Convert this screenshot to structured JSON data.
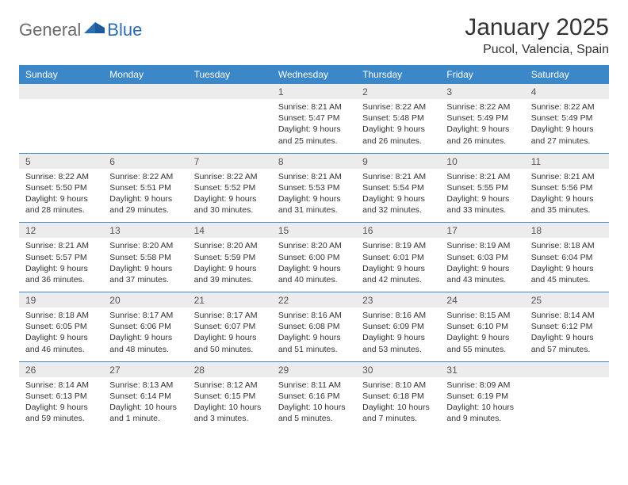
{
  "logo": {
    "text1": "General",
    "text2": "Blue"
  },
  "title": "January 2025",
  "location": "Pucol, Valencia, Spain",
  "colors": {
    "header_bg": "#3b87c8",
    "header_text": "#ffffff",
    "daynum_bg": "#ececec",
    "daynum_text": "#555555",
    "body_text": "#333333",
    "logo_gray": "#6b6b6b",
    "logo_blue": "#2a6db3",
    "row_sep": "#3b87c8"
  },
  "days_of_week": [
    "Sunday",
    "Monday",
    "Tuesday",
    "Wednesday",
    "Thursday",
    "Friday",
    "Saturday"
  ],
  "weeks": [
    [
      null,
      null,
      null,
      {
        "n": "1",
        "sr": "8:21 AM",
        "ss": "5:47 PM",
        "dl": "9 hours and 25 minutes."
      },
      {
        "n": "2",
        "sr": "8:22 AM",
        "ss": "5:48 PM",
        "dl": "9 hours and 26 minutes."
      },
      {
        "n": "3",
        "sr": "8:22 AM",
        "ss": "5:49 PM",
        "dl": "9 hours and 26 minutes."
      },
      {
        "n": "4",
        "sr": "8:22 AM",
        "ss": "5:49 PM",
        "dl": "9 hours and 27 minutes."
      }
    ],
    [
      {
        "n": "5",
        "sr": "8:22 AM",
        "ss": "5:50 PM",
        "dl": "9 hours and 28 minutes."
      },
      {
        "n": "6",
        "sr": "8:22 AM",
        "ss": "5:51 PM",
        "dl": "9 hours and 29 minutes."
      },
      {
        "n": "7",
        "sr": "8:22 AM",
        "ss": "5:52 PM",
        "dl": "9 hours and 30 minutes."
      },
      {
        "n": "8",
        "sr": "8:21 AM",
        "ss": "5:53 PM",
        "dl": "9 hours and 31 minutes."
      },
      {
        "n": "9",
        "sr": "8:21 AM",
        "ss": "5:54 PM",
        "dl": "9 hours and 32 minutes."
      },
      {
        "n": "10",
        "sr": "8:21 AM",
        "ss": "5:55 PM",
        "dl": "9 hours and 33 minutes."
      },
      {
        "n": "11",
        "sr": "8:21 AM",
        "ss": "5:56 PM",
        "dl": "9 hours and 35 minutes."
      }
    ],
    [
      {
        "n": "12",
        "sr": "8:21 AM",
        "ss": "5:57 PM",
        "dl": "9 hours and 36 minutes."
      },
      {
        "n": "13",
        "sr": "8:20 AM",
        "ss": "5:58 PM",
        "dl": "9 hours and 37 minutes."
      },
      {
        "n": "14",
        "sr": "8:20 AM",
        "ss": "5:59 PM",
        "dl": "9 hours and 39 minutes."
      },
      {
        "n": "15",
        "sr": "8:20 AM",
        "ss": "6:00 PM",
        "dl": "9 hours and 40 minutes."
      },
      {
        "n": "16",
        "sr": "8:19 AM",
        "ss": "6:01 PM",
        "dl": "9 hours and 42 minutes."
      },
      {
        "n": "17",
        "sr": "8:19 AM",
        "ss": "6:03 PM",
        "dl": "9 hours and 43 minutes."
      },
      {
        "n": "18",
        "sr": "8:18 AM",
        "ss": "6:04 PM",
        "dl": "9 hours and 45 minutes."
      }
    ],
    [
      {
        "n": "19",
        "sr": "8:18 AM",
        "ss": "6:05 PM",
        "dl": "9 hours and 46 minutes."
      },
      {
        "n": "20",
        "sr": "8:17 AM",
        "ss": "6:06 PM",
        "dl": "9 hours and 48 minutes."
      },
      {
        "n": "21",
        "sr": "8:17 AM",
        "ss": "6:07 PM",
        "dl": "9 hours and 50 minutes."
      },
      {
        "n": "22",
        "sr": "8:16 AM",
        "ss": "6:08 PM",
        "dl": "9 hours and 51 minutes."
      },
      {
        "n": "23",
        "sr": "8:16 AM",
        "ss": "6:09 PM",
        "dl": "9 hours and 53 minutes."
      },
      {
        "n": "24",
        "sr": "8:15 AM",
        "ss": "6:10 PM",
        "dl": "9 hours and 55 minutes."
      },
      {
        "n": "25",
        "sr": "8:14 AM",
        "ss": "6:12 PM",
        "dl": "9 hours and 57 minutes."
      }
    ],
    [
      {
        "n": "26",
        "sr": "8:14 AM",
        "ss": "6:13 PM",
        "dl": "9 hours and 59 minutes."
      },
      {
        "n": "27",
        "sr": "8:13 AM",
        "ss": "6:14 PM",
        "dl": "10 hours and 1 minute."
      },
      {
        "n": "28",
        "sr": "8:12 AM",
        "ss": "6:15 PM",
        "dl": "10 hours and 3 minutes."
      },
      {
        "n": "29",
        "sr": "8:11 AM",
        "ss": "6:16 PM",
        "dl": "10 hours and 5 minutes."
      },
      {
        "n": "30",
        "sr": "8:10 AM",
        "ss": "6:18 PM",
        "dl": "10 hours and 7 minutes."
      },
      {
        "n": "31",
        "sr": "8:09 AM",
        "ss": "6:19 PM",
        "dl": "10 hours and 9 minutes."
      },
      null
    ]
  ],
  "labels": {
    "sunrise": "Sunrise:",
    "sunset": "Sunset:",
    "daylight": "Daylight:"
  }
}
